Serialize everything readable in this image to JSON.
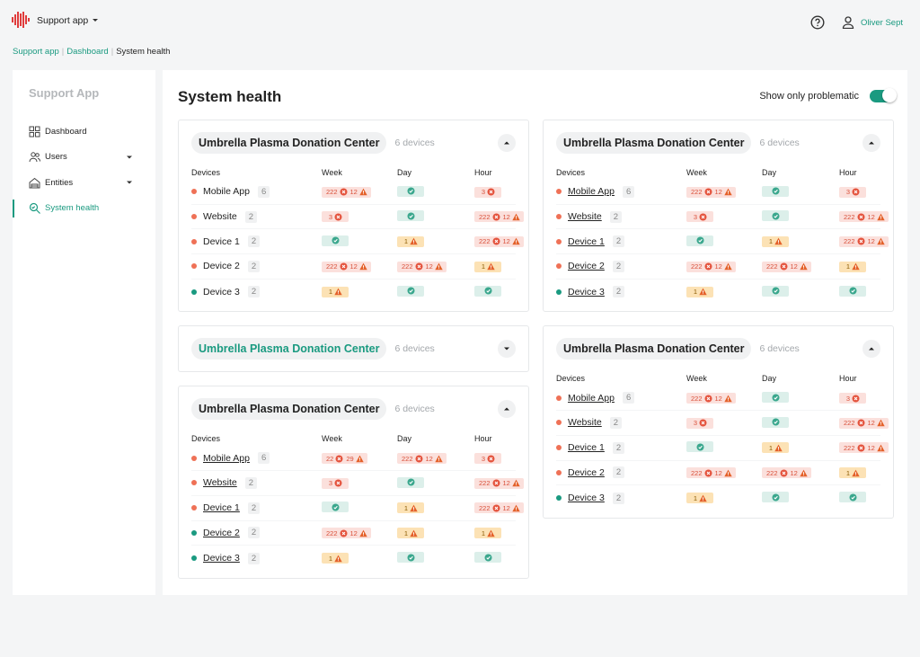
{
  "header": {
    "app_name": "Support app",
    "user": "Oliver Sept"
  },
  "breadcrumb": [
    "Support app",
    "Dashboard",
    "System health"
  ],
  "sidebar": {
    "title": "Support App",
    "items": [
      "Dashboard",
      "Users",
      "Entities",
      "System health"
    ],
    "active": 3
  },
  "main": {
    "title": "System health",
    "toggle_label": "Show only problematic",
    "toggle_on": true
  },
  "columns": [
    "Devices",
    "Week",
    "Day",
    "Hour"
  ],
  "cards": [
    {
      "column": 0,
      "name": "Umbrella Plasma Donation Center",
      "device_count": "6 devices",
      "collapsed": false,
      "linked": false,
      "rows": [
        {
          "device": "Mobile App",
          "count": 6,
          "status": "error",
          "week": [
            {
              "n": 222,
              "icon": "error"
            },
            {
              "n": 12,
              "icon": "warn"
            }
          ],
          "day": [
            {
              "icon": "ok"
            }
          ],
          "hour": [
            {
              "n": 3,
              "icon": "error"
            }
          ]
        },
        {
          "device": "Website",
          "count": 2,
          "status": "error",
          "week": [
            {
              "n": 3,
              "icon": "error"
            }
          ],
          "day": [
            {
              "icon": "ok"
            }
          ],
          "hour": [
            {
              "n": 222,
              "icon": "error"
            },
            {
              "n": 12,
              "icon": "warn"
            }
          ]
        },
        {
          "device": "Device 1",
          "count": 2,
          "status": "error",
          "week": [
            {
              "icon": "ok"
            }
          ],
          "day": [
            {
              "n": 1,
              "icon": "warn"
            }
          ],
          "hour": [
            {
              "n": 222,
              "icon": "error"
            },
            {
              "n": 12,
              "icon": "warn"
            }
          ]
        },
        {
          "device": "Device 2",
          "count": 2,
          "status": "error",
          "week": [
            {
              "n": 222,
              "icon": "error"
            },
            {
              "n": 12,
              "icon": "warn"
            }
          ],
          "day": [
            {
              "n": 222,
              "icon": "error"
            },
            {
              "n": 12,
              "icon": "warn"
            }
          ],
          "hour": [
            {
              "n": 1,
              "icon": "warn"
            }
          ]
        },
        {
          "device": "Device 3",
          "count": 2,
          "status": "ok",
          "week": [
            {
              "n": 1,
              "icon": "warn"
            }
          ],
          "day": [
            {
              "icon": "ok"
            }
          ],
          "hour": [
            {
              "icon": "ok"
            }
          ]
        }
      ]
    },
    {
      "column": 0,
      "name": "Umbrella Plasma Donation Center",
      "device_count": "6 devices",
      "collapsed": true,
      "linked": true,
      "rows": []
    },
    {
      "column": 0,
      "name": "Umbrella Plasma Donation Center",
      "device_count": "6 devices",
      "collapsed": false,
      "linked": true,
      "rows": [
        {
          "device": "Mobile App",
          "count": 6,
          "status": "error",
          "week": [
            {
              "n": 22,
              "icon": "error"
            },
            {
              "n": 29,
              "icon": "warn"
            }
          ],
          "day": [
            {
              "n": 222,
              "icon": "error"
            },
            {
              "n": 12,
              "icon": "warn"
            }
          ],
          "hour": [
            {
              "n": 3,
              "icon": "error"
            }
          ]
        },
        {
          "device": "Website",
          "count": 2,
          "status": "error",
          "week": [
            {
              "n": 3,
              "icon": "error"
            }
          ],
          "day": [
            {
              "icon": "ok"
            }
          ],
          "hour": [
            {
              "n": 222,
              "icon": "error"
            },
            {
              "n": 12,
              "icon": "warn"
            }
          ]
        },
        {
          "device": "Device 1",
          "count": 2,
          "status": "error",
          "week": [
            {
              "icon": "ok"
            }
          ],
          "day": [
            {
              "n": 1,
              "icon": "warn"
            }
          ],
          "hour": [
            {
              "n": 222,
              "icon": "error"
            },
            {
              "n": 12,
              "icon": "warn"
            }
          ]
        },
        {
          "device": "Device 2",
          "count": 2,
          "status": "ok",
          "week": [
            {
              "n": 222,
              "icon": "error"
            },
            {
              "n": 12,
              "icon": "warn"
            }
          ],
          "day": [
            {
              "n": 1,
              "icon": "warn"
            }
          ],
          "hour": [
            {
              "n": 1,
              "icon": "warn"
            }
          ]
        },
        {
          "device": "Device 3",
          "count": 2,
          "status": "ok",
          "week": [
            {
              "n": 1,
              "icon": "warn"
            }
          ],
          "day": [
            {
              "icon": "ok"
            }
          ],
          "hour": [
            {
              "icon": "ok"
            }
          ]
        }
      ]
    },
    {
      "column": 1,
      "name": "Umbrella Plasma Donation Center",
      "device_count": "6 devices",
      "collapsed": false,
      "linked": true,
      "rows": [
        {
          "device": "Mobile App",
          "count": 6,
          "status": "error",
          "week": [
            {
              "n": 222,
              "icon": "error"
            },
            {
              "n": 12,
              "icon": "warn"
            }
          ],
          "day": [
            {
              "icon": "ok"
            }
          ],
          "hour": [
            {
              "n": 3,
              "icon": "error"
            }
          ]
        },
        {
          "device": "Website",
          "count": 2,
          "status": "error",
          "week": [
            {
              "n": 3,
              "icon": "error"
            }
          ],
          "day": [
            {
              "icon": "ok"
            }
          ],
          "hour": [
            {
              "n": 222,
              "icon": "error"
            },
            {
              "n": 12,
              "icon": "warn"
            }
          ]
        },
        {
          "device": "Device 1",
          "count": 2,
          "status": "error",
          "week": [
            {
              "icon": "ok"
            }
          ],
          "day": [
            {
              "n": 1,
              "icon": "warn"
            }
          ],
          "hour": [
            {
              "n": 222,
              "icon": "error"
            },
            {
              "n": 12,
              "icon": "warn"
            }
          ]
        },
        {
          "device": "Device 2",
          "count": 2,
          "status": "error",
          "week": [
            {
              "n": 222,
              "icon": "error"
            },
            {
              "n": 12,
              "icon": "warn"
            }
          ],
          "day": [
            {
              "n": 222,
              "icon": "error"
            },
            {
              "n": 12,
              "icon": "warn"
            }
          ],
          "hour": [
            {
              "n": 1,
              "icon": "warn"
            }
          ]
        },
        {
          "device": "Device 3",
          "count": 2,
          "status": "ok",
          "week": [
            {
              "n": 1,
              "icon": "warn"
            }
          ],
          "day": [
            {
              "icon": "ok"
            }
          ],
          "hour": [
            {
              "icon": "ok"
            }
          ]
        }
      ]
    },
    {
      "column": 1,
      "name": "Umbrella Plasma Donation Center",
      "device_count": "6 devices",
      "collapsed": false,
      "linked": true,
      "rows": [
        {
          "device": "Mobile App",
          "count": 6,
          "status": "error",
          "week": [
            {
              "n": 222,
              "icon": "error"
            },
            {
              "n": 12,
              "icon": "warn"
            }
          ],
          "day": [
            {
              "icon": "ok"
            }
          ],
          "hour": [
            {
              "n": 3,
              "icon": "error"
            }
          ]
        },
        {
          "device": "Website",
          "count": 2,
          "status": "error",
          "week": [
            {
              "n": 3,
              "icon": "error"
            }
          ],
          "day": [
            {
              "icon": "ok"
            }
          ],
          "hour": [
            {
              "n": 222,
              "icon": "error"
            },
            {
              "n": 12,
              "icon": "warn"
            }
          ]
        },
        {
          "device": "Device 1",
          "count": 2,
          "status": "error",
          "week": [
            {
              "icon": "ok"
            }
          ],
          "day": [
            {
              "n": 1,
              "icon": "warn"
            }
          ],
          "hour": [
            {
              "n": 222,
              "icon": "error"
            },
            {
              "n": 12,
              "icon": "warn"
            }
          ]
        },
        {
          "device": "Device 2",
          "count": 2,
          "status": "error",
          "week": [
            {
              "n": 222,
              "icon": "error"
            },
            {
              "n": 12,
              "icon": "warn"
            }
          ],
          "day": [
            {
              "n": 222,
              "icon": "error"
            },
            {
              "n": 12,
              "icon": "warn"
            }
          ],
          "hour": [
            {
              "n": 1,
              "icon": "warn"
            }
          ]
        },
        {
          "device": "Device 3",
          "count": 2,
          "status": "ok",
          "week": [
            {
              "n": 1,
              "icon": "warn"
            }
          ],
          "day": [
            {
              "icon": "ok"
            }
          ],
          "hour": [
            {
              "icon": "ok"
            }
          ]
        }
      ]
    }
  ]
}
